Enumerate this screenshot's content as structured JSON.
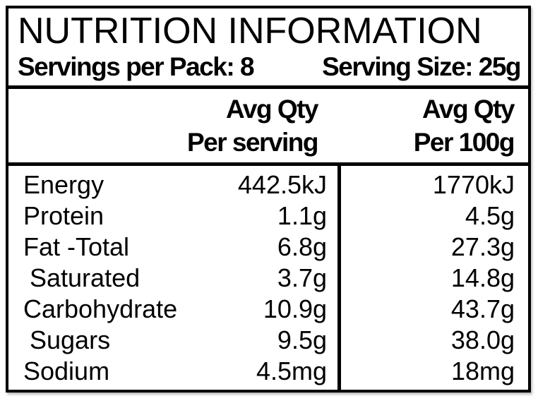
{
  "title": "NUTRITION INFORMATION",
  "serving_info": {
    "servings_per_pack": "Servings per Pack: 8",
    "serving_size": "Serving Size: 25g"
  },
  "columns": {
    "per_serving": {
      "line1": "Avg Qty",
      "line2": "Per serving"
    },
    "per_100g": {
      "line1": "Avg Qty",
      "line2": "Per 100g"
    }
  },
  "rows": [
    {
      "nutrient": "Energy",
      "per_serving": "442.5kJ",
      "per_100g": "1770kJ"
    },
    {
      "nutrient": "Protein",
      "per_serving": "1.1g",
      "per_100g": "4.5g"
    },
    {
      "nutrient": "Fat -Total",
      "per_serving": "6.8g",
      "per_100g": "27.3g"
    },
    {
      "nutrient": "Saturated",
      "per_serving": "3.7g",
      "per_100g": "14.8g"
    },
    {
      "nutrient": "Carbohydrate",
      "per_serving": "10.9g",
      "per_100g": "43.7g"
    },
    {
      "nutrient": "Sugars",
      "per_serving": "9.5g",
      "per_100g": "38.0g"
    },
    {
      "nutrient": "Sodium",
      "per_serving": "4.5mg",
      "per_100g": "18mg"
    }
  ],
  "colors": {
    "border": "#000000",
    "background": "#ffffff",
    "text": "#000000"
  }
}
